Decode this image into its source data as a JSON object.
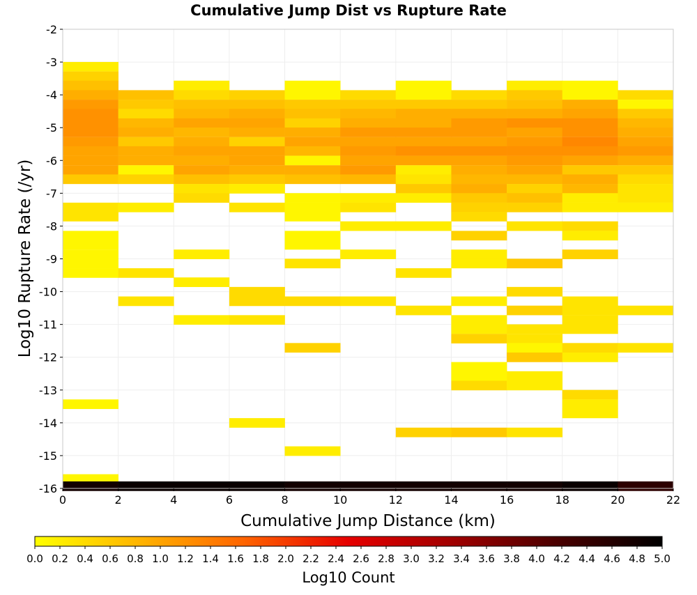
{
  "chart_data": {
    "type": "heatmap",
    "title": "Cumulative Jump Dist vs Rupture Rate",
    "xlabel": "Cumulative Jump Distance (km)",
    "ylabel": "Log10 Rupture Rate (/yr)",
    "colorbar_label": "Log10 Count",
    "xlim": [
      0,
      22
    ],
    "ylim": [
      -16,
      -2
    ],
    "x_ticks": [
      "0",
      "2",
      "4",
      "6",
      "8",
      "10",
      "12",
      "14",
      "16",
      "18",
      "20",
      "22"
    ],
    "y_ticks": [
      "-2",
      "-3",
      "-4",
      "-5",
      "-6",
      "-7",
      "-8",
      "-9",
      "-10",
      "-11",
      "-12",
      "-13",
      "-14",
      "-15",
      "-16"
    ],
    "colorbar_ticks": [
      "0.0",
      "0.2",
      "0.4",
      "0.6",
      "0.8",
      "1.0",
      "1.2",
      "1.4",
      "1.6",
      "1.8",
      "2.0",
      "2.2",
      "2.4",
      "2.6",
      "2.8",
      "3.0",
      "3.2",
      "3.4",
      "3.6",
      "3.8",
      "4.0",
      "4.2",
      "4.4",
      "4.6",
      "4.8",
      "5.0"
    ],
    "colorbar_range": [
      0,
      5
    ],
    "grid": true,
    "colorscale": [
      "#ffff00",
      "#ffb400",
      "#ff6400",
      "#e60000",
      "#a00000",
      "#4a0000",
      "#000000"
    ],
    "x_bin_width": 2,
    "y_bin_height": 0.2857,
    "cells": [
      [
        1,
        -3.14,
        0.2
      ],
      [
        1,
        -3.43,
        0.5
      ],
      [
        1,
        -3.71,
        0.7
      ],
      [
        1,
        -4.0,
        0.9
      ],
      [
        1,
        -4.29,
        1.1
      ],
      [
        1,
        -4.57,
        1.2
      ],
      [
        1,
        -4.86,
        1.2
      ],
      [
        1,
        -5.14,
        1.2
      ],
      [
        1,
        -5.43,
        1.1
      ],
      [
        1,
        -5.71,
        1.0
      ],
      [
        1,
        -6.0,
        1.0
      ],
      [
        1,
        -6.29,
        1.0
      ],
      [
        1,
        -6.57,
        0.6
      ],
      [
        1,
        -7.43,
        0.3
      ],
      [
        1,
        -7.71,
        0.3
      ],
      [
        1,
        -8.29,
        0.1
      ],
      [
        1,
        -8.57,
        0.1
      ],
      [
        1,
        -8.86,
        0.1
      ],
      [
        1,
        -9.14,
        0.1
      ],
      [
        1,
        -9.43,
        0.1
      ],
      [
        1,
        -13.43,
        0.1
      ],
      [
        1,
        -15.71,
        0.1
      ],
      [
        3,
        -4.0,
        0.7
      ],
      [
        3,
        -4.29,
        0.6
      ],
      [
        3,
        -4.57,
        0.4
      ],
      [
        3,
        -4.86,
        0.8
      ],
      [
        3,
        -5.14,
        0.9
      ],
      [
        3,
        -5.43,
        0.6
      ],
      [
        3,
        -5.71,
        0.9
      ],
      [
        3,
        -6.0,
        0.9
      ],
      [
        3,
        -6.29,
        0.1
      ],
      [
        3,
        -6.57,
        0.5
      ],
      [
        3,
        -7.43,
        0.2
      ],
      [
        3,
        -9.43,
        0.3
      ],
      [
        3,
        -10.29,
        0.3
      ],
      [
        5,
        -3.71,
        0.2
      ],
      [
        5,
        -4.0,
        0.4
      ],
      [
        5,
        -4.29,
        0.7
      ],
      [
        5,
        -4.57,
        0.8
      ],
      [
        5,
        -4.86,
        1.0
      ],
      [
        5,
        -5.14,
        0.8
      ],
      [
        5,
        -5.43,
        0.9
      ],
      [
        5,
        -5.71,
        1.0
      ],
      [
        5,
        -6.0,
        0.9
      ],
      [
        5,
        -6.29,
        1.0
      ],
      [
        5,
        -6.57,
        0.7
      ],
      [
        5,
        -6.86,
        0.3
      ],
      [
        5,
        -7.14,
        0.4
      ],
      [
        5,
        -8.86,
        0.2
      ],
      [
        5,
        -9.71,
        0.2
      ],
      [
        5,
        -10.86,
        0.2
      ],
      [
        7,
        -4.0,
        0.5
      ],
      [
        7,
        -4.29,
        0.7
      ],
      [
        7,
        -4.57,
        0.9
      ],
      [
        7,
        -4.86,
        1.0
      ],
      [
        7,
        -5.14,
        0.9
      ],
      [
        7,
        -5.43,
        0.5
      ],
      [
        7,
        -5.71,
        1.0
      ],
      [
        7,
        -6.0,
        1.0
      ],
      [
        7,
        -6.29,
        0.9
      ],
      [
        7,
        -6.57,
        0.6
      ],
      [
        7,
        -6.86,
        0.2
      ],
      [
        7,
        -7.43,
        0.3
      ],
      [
        7,
        -10.0,
        0.4
      ],
      [
        7,
        -10.29,
        0.4
      ],
      [
        7,
        -10.86,
        0.3
      ],
      [
        7,
        -14.0,
        0.2
      ],
      [
        9,
        -3.71,
        0.1
      ],
      [
        9,
        -4.0,
        0.1
      ],
      [
        9,
        -4.29,
        0.6
      ],
      [
        9,
        -4.57,
        0.7
      ],
      [
        9,
        -4.86,
        0.5
      ],
      [
        9,
        -5.14,
        0.9
      ],
      [
        9,
        -5.43,
        1.0
      ],
      [
        9,
        -5.71,
        0.8
      ],
      [
        9,
        -6.0,
        0.1
      ],
      [
        9,
        -6.29,
        0.9
      ],
      [
        9,
        -6.57,
        0.7
      ],
      [
        9,
        -7.14,
        0.1
      ],
      [
        9,
        -7.43,
        0.1
      ],
      [
        9,
        -7.71,
        0.1
      ],
      [
        9,
        -8.29,
        0.1
      ],
      [
        9,
        -8.57,
        0.1
      ],
      [
        9,
        -9.14,
        0.3
      ],
      [
        9,
        -10.29,
        0.4
      ],
      [
        9,
        -11.71,
        0.5
      ],
      [
        9,
        -14.86,
        0.2
      ],
      [
        11,
        -4.0,
        0.4
      ],
      [
        11,
        -4.29,
        0.6
      ],
      [
        11,
        -4.57,
        0.8
      ],
      [
        11,
        -4.86,
        0.9
      ],
      [
        11,
        -5.14,
        1.1
      ],
      [
        11,
        -5.43,
        1.0
      ],
      [
        11,
        -5.71,
        1.1
      ],
      [
        11,
        -6.0,
        1.0
      ],
      [
        11,
        -6.29,
        1.1
      ],
      [
        11,
        -6.57,
        0.8
      ],
      [
        11,
        -7.14,
        0.2
      ],
      [
        11,
        -7.43,
        0.3
      ],
      [
        11,
        -8.0,
        0.2
      ],
      [
        11,
        -8.86,
        0.2
      ],
      [
        11,
        -10.29,
        0.3
      ],
      [
        13,
        -3.71,
        0.1
      ],
      [
        13,
        -4.0,
        0.1
      ],
      [
        13,
        -4.29,
        0.6
      ],
      [
        13,
        -4.57,
        0.9
      ],
      [
        13,
        -4.86,
        0.9
      ],
      [
        13,
        -5.14,
        1.1
      ],
      [
        13,
        -5.43,
        1.0
      ],
      [
        13,
        -5.71,
        1.2
      ],
      [
        13,
        -6.0,
        1.0
      ],
      [
        13,
        -6.29,
        0.2
      ],
      [
        13,
        -6.57,
        0.3
      ],
      [
        13,
        -6.86,
        0.6
      ],
      [
        13,
        -7.14,
        0.2
      ],
      [
        13,
        -8.0,
        0.2
      ],
      [
        13,
        -9.43,
        0.3
      ],
      [
        13,
        -10.57,
        0.3
      ],
      [
        13,
        -14.29,
        0.5
      ],
      [
        15,
        -4.0,
        0.4
      ],
      [
        15,
        -4.29,
        0.6
      ],
      [
        15,
        -4.57,
        0.9
      ],
      [
        15,
        -4.86,
        1.1
      ],
      [
        15,
        -5.14,
        1.1
      ],
      [
        15,
        -5.43,
        1.0
      ],
      [
        15,
        -5.71,
        1.2
      ],
      [
        15,
        -6.0,
        1.0
      ],
      [
        15,
        -6.29,
        0.9
      ],
      [
        15,
        -6.57,
        0.8
      ],
      [
        15,
        -6.86,
        0.9
      ],
      [
        15,
        -7.14,
        0.6
      ],
      [
        15,
        -7.43,
        0.5
      ],
      [
        15,
        -7.71,
        0.4
      ],
      [
        15,
        -8.29,
        0.5
      ],
      [
        15,
        -8.86,
        0.2
      ],
      [
        15,
        -9.14,
        0.2
      ],
      [
        15,
        -10.29,
        0.2
      ],
      [
        15,
        -10.86,
        0.2
      ],
      [
        15,
        -11.14,
        0.2
      ],
      [
        15,
        -11.43,
        0.5
      ],
      [
        15,
        -12.29,
        0.1
      ],
      [
        15,
        -12.57,
        0.1
      ],
      [
        15,
        -12.86,
        0.4
      ],
      [
        15,
        -14.29,
        0.6
      ],
      [
        17,
        -3.71,
        0.2
      ],
      [
        17,
        -4.0,
        0.6
      ],
      [
        17,
        -4.29,
        0.7
      ],
      [
        17,
        -4.57,
        0.9
      ],
      [
        17,
        -4.86,
        1.2
      ],
      [
        17,
        -5.14,
        1.0
      ],
      [
        17,
        -5.43,
        1.1
      ],
      [
        17,
        -5.71,
        1.2
      ],
      [
        17,
        -6.0,
        1.1
      ],
      [
        17,
        -6.29,
        1.0
      ],
      [
        17,
        -6.57,
        0.8
      ],
      [
        17,
        -6.86,
        0.5
      ],
      [
        17,
        -7.14,
        0.7
      ],
      [
        17,
        -7.43,
        0.5
      ],
      [
        17,
        -8.0,
        0.3
      ],
      [
        17,
        -9.14,
        0.6
      ],
      [
        17,
        -10.0,
        0.4
      ],
      [
        17,
        -10.57,
        0.5
      ],
      [
        17,
        -11.14,
        0.3
      ],
      [
        17,
        -11.43,
        0.3
      ],
      [
        17,
        -11.71,
        0.1
      ],
      [
        17,
        -12.0,
        0.6
      ],
      [
        17,
        -12.57,
        0.2
      ],
      [
        17,
        -12.86,
        0.2
      ],
      [
        17,
        -14.29,
        0.3
      ],
      [
        19,
        -3.71,
        0.1
      ],
      [
        19,
        -4.0,
        0.1
      ],
      [
        19,
        -4.29,
        0.9
      ],
      [
        19,
        -4.57,
        1.0
      ],
      [
        19,
        -4.86,
        1.2
      ],
      [
        19,
        -5.14,
        1.2
      ],
      [
        19,
        -5.43,
        1.3
      ],
      [
        19,
        -5.71,
        1.2
      ],
      [
        19,
        -6.0,
        1.0
      ],
      [
        19,
        -6.29,
        0.6
      ],
      [
        19,
        -6.57,
        0.9
      ],
      [
        19,
        -6.86,
        0.8
      ],
      [
        19,
        -7.14,
        0.2
      ],
      [
        19,
        -7.43,
        0.2
      ],
      [
        19,
        -8.0,
        0.4
      ],
      [
        19,
        -8.29,
        0.2
      ],
      [
        19,
        -8.86,
        0.5
      ],
      [
        19,
        -10.29,
        0.3
      ],
      [
        19,
        -10.57,
        0.3
      ],
      [
        19,
        -10.86,
        0.3
      ],
      [
        19,
        -11.14,
        0.3
      ],
      [
        19,
        -11.71,
        0.4
      ],
      [
        19,
        -12.0,
        0.2
      ],
      [
        19,
        -13.14,
        0.4
      ],
      [
        19,
        -13.43,
        0.2
      ],
      [
        19,
        -13.71,
        0.2
      ],
      [
        21,
        -4.0,
        0.4
      ],
      [
        21,
        -4.29,
        0.1
      ],
      [
        21,
        -4.57,
        0.6
      ],
      [
        21,
        -4.86,
        0.8
      ],
      [
        21,
        -5.14,
        0.9
      ],
      [
        21,
        -5.43,
        1.0
      ],
      [
        21,
        -5.71,
        1.1
      ],
      [
        21,
        -6.0,
        0.9
      ],
      [
        21,
        -6.29,
        0.6
      ],
      [
        21,
        -6.57,
        0.4
      ],
      [
        21,
        -6.86,
        0.3
      ],
      [
        21,
        -7.14,
        0.3
      ],
      [
        21,
        -7.43,
        0.2
      ],
      [
        21,
        -10.57,
        0.3
      ],
      [
        21,
        -11.71,
        0.3
      ],
      [
        1,
        -15.93,
        4.8
      ],
      [
        3,
        -15.93,
        4.9
      ],
      [
        5,
        -15.93,
        4.9
      ],
      [
        7,
        -15.93,
        4.9
      ],
      [
        9,
        -15.93,
        4.8
      ],
      [
        11,
        -15.93,
        4.8
      ],
      [
        13,
        -15.93,
        4.8
      ],
      [
        15,
        -15.93,
        4.8
      ],
      [
        17,
        -15.93,
        4.8
      ],
      [
        19,
        -15.93,
        4.9
      ],
      [
        21,
        -15.93,
        4.5
      ]
    ]
  }
}
